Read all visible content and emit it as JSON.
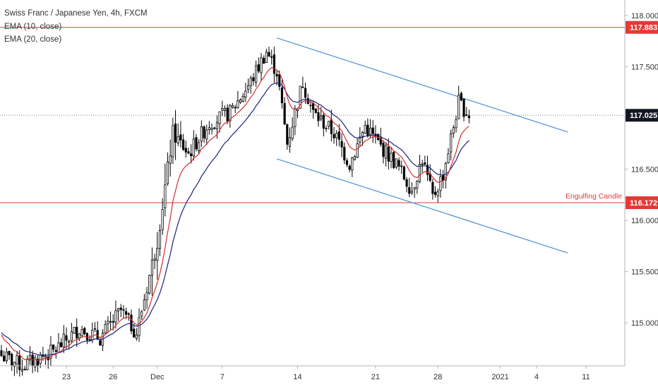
{
  "header": {
    "title": "Swiss Franc / Japanese Yen, 4h, FXCM",
    "indicators": [
      "EMA (10, close)",
      "EMA (20, close)"
    ]
  },
  "colors": {
    "ema10": "#d32f2f",
    "ema20": "#1a237e",
    "channel": "#4a90d9",
    "level_line": "#e53935",
    "candle_body": "#000000",
    "current_price_label": "#131722"
  },
  "chart_data": {
    "type": "candlestick",
    "instrument": "CHF/JPY",
    "timeframe": "4h",
    "y_axis": {
      "ticks": [
        "118.000",
        "117.500",
        "117.000",
        "116.500",
        "116.000",
        "115.500",
        "115.000"
      ],
      "range": [
        114.58,
        118.15
      ]
    },
    "x_axis": {
      "ticks": [
        "23",
        "26",
        "Dec",
        "7",
        "14",
        "21",
        "28",
        "2021",
        "4",
        "11"
      ]
    },
    "price_labels": {
      "resistance": "117.883",
      "current": "117.025",
      "support": "116.172"
    },
    "annotation": "Engulfing Candle",
    "anchors": [
      {
        "i": 0,
        "c": 114.68
      },
      {
        "i": 8,
        "c": 114.58
      },
      {
        "i": 20,
        "c": 114.72
      },
      {
        "i": 30,
        "c": 114.95
      },
      {
        "i": 38,
        "c": 114.85
      },
      {
        "i": 46,
        "c": 115.12
      },
      {
        "i": 52,
        "c": 114.9
      },
      {
        "i": 60,
        "c": 115.8
      },
      {
        "i": 66,
        "c": 116.85
      },
      {
        "i": 72,
        "c": 116.65
      },
      {
        "i": 80,
        "c": 116.95
      },
      {
        "i": 88,
        "c": 117.05
      },
      {
        "i": 96,
        "c": 117.35
      },
      {
        "i": 102,
        "c": 117.65
      },
      {
        "i": 106,
        "c": 117.45
      },
      {
        "i": 110,
        "c": 116.75
      },
      {
        "i": 116,
        "c": 117.35
      },
      {
        "i": 120,
        "c": 117.05
      },
      {
        "i": 128,
        "c": 116.85
      },
      {
        "i": 134,
        "c": 116.55
      },
      {
        "i": 140,
        "c": 116.92
      },
      {
        "i": 146,
        "c": 116.72
      },
      {
        "i": 152,
        "c": 116.55
      },
      {
        "i": 158,
        "c": 116.3
      },
      {
        "i": 162,
        "c": 116.6
      },
      {
        "i": 166,
        "c": 116.22
      },
      {
        "i": 170,
        "c": 116.45
      },
      {
        "i": 176,
        "c": 117.15
      },
      {
        "i": 180,
        "c": 117.03
      }
    ],
    "ema10_last": 116.92,
    "ema20_last": 116.8
  }
}
